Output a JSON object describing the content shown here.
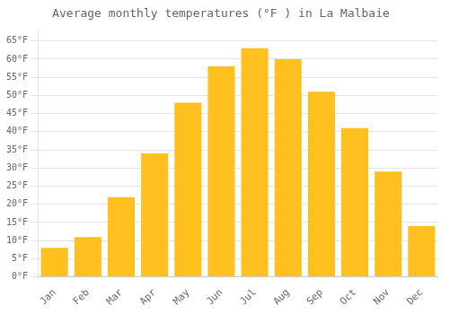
{
  "chart_data": {
    "type": "bar",
    "title": "Average monthly temperatures (°F ) in La Malbaie",
    "categories": [
      "Jan",
      "Feb",
      "Mar",
      "Apr",
      "May",
      "Jun",
      "Jul",
      "Aug",
      "Sep",
      "Oct",
      "Nov",
      "Dec"
    ],
    "values": [
      8,
      11,
      22,
      34,
      48,
      58,
      63,
      60,
      51,
      41,
      29,
      14
    ],
    "color": "#FFC020",
    "ylim": [
      0,
      68
    ],
    "yticks": [
      {
        "value": 0,
        "label": "0°F"
      },
      {
        "value": 5,
        "label": "5°F"
      },
      {
        "value": 10,
        "label": "10°F"
      },
      {
        "value": 15,
        "label": "15°F"
      },
      {
        "value": 20,
        "label": "20°F"
      },
      {
        "value": 25,
        "label": "25°F"
      },
      {
        "value": 30,
        "label": "30°F"
      },
      {
        "value": 35,
        "label": "35°F"
      },
      {
        "value": 40,
        "label": "40°F"
      },
      {
        "value": 45,
        "label": "45°F"
      },
      {
        "value": 50,
        "label": "50°F"
      },
      {
        "value": 55,
        "label": "55°F"
      },
      {
        "value": 60,
        "label": "60°F"
      },
      {
        "value": 65,
        "label": "65°F"
      }
    ],
    "grid": true
  }
}
